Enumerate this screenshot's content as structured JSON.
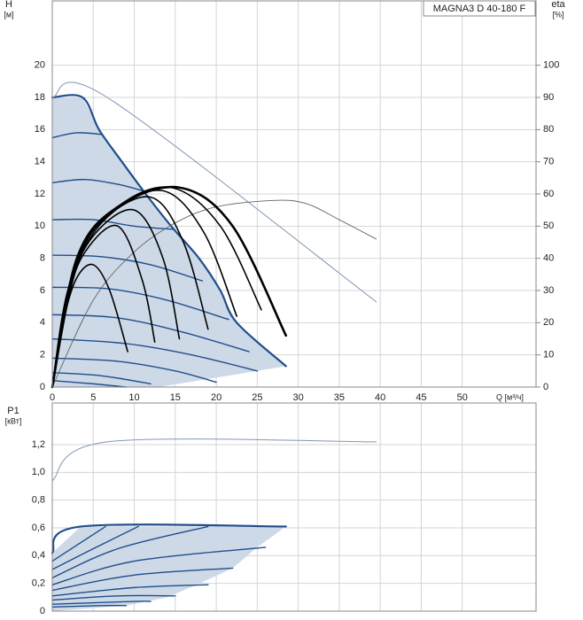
{
  "chart_data": [
    {
      "type": "line",
      "title": "MAGNA3 D 40-180 F",
      "ylabel": [
        "H",
        "[м]"
      ],
      "y2label": [
        "eta",
        "[%]"
      ],
      "xlabel": "Q [м³/ч]",
      "xlim": [
        0,
        59
      ],
      "xticks": [
        0,
        5,
        10,
        15,
        20,
        25,
        30,
        35,
        40,
        45,
        50
      ],
      "ylim": [
        0,
        24
      ],
      "yticks": [
        0,
        2,
        4,
        6,
        8,
        10,
        12,
        14,
        16,
        18,
        20
      ],
      "y2lim": [
        0,
        120
      ],
      "y2ticks": [
        0,
        10,
        20,
        30,
        40,
        50,
        60,
        70,
        80,
        90,
        100
      ],
      "grid": true,
      "series": [
        {
          "fill": "#cdd9e7",
          "x": [
            0,
            0,
            3.7,
            5.7,
            8.5,
            11.4,
            14.5,
            17.9,
            20.5,
            22.5,
            28.5,
            13,
            0
          ],
          "values": [
            0,
            18,
            18,
            16,
            14,
            12,
            10,
            8,
            6,
            4,
            1.3,
            0,
            0
          ]
        },
        {
          "color": "#1f4e8c",
          "width": 2.2,
          "x": [
            0,
            3.7,
            5.7,
            8.5,
            11.4,
            14.5,
            17.9,
            20.5,
            22.5,
            28.5
          ],
          "values": [
            18,
            18,
            16,
            14,
            12,
            10,
            8,
            6,
            4,
            1.3
          ]
        },
        {
          "color": "#1f4e8c",
          "width": 1.4,
          "x": [
            0,
            3,
            6.1
          ],
          "values": [
            15.5,
            15.8,
            15.7
          ]
        },
        {
          "color": "#1f4e8c",
          "width": 1.4,
          "x": [
            0,
            4,
            8,
            11
          ],
          "values": [
            12.7,
            12.9,
            12.6,
            12.2
          ]
        },
        {
          "color": "#1f4e8c",
          "width": 1.4,
          "x": [
            0,
            5,
            10,
            14.8
          ],
          "values": [
            10.4,
            10.4,
            10.0,
            9.8
          ]
        },
        {
          "color": "#1f4e8c",
          "width": 1.4,
          "x": [
            0,
            6,
            12,
            18.3
          ],
          "values": [
            8.2,
            8.1,
            7.6,
            6.6
          ]
        },
        {
          "color": "#1f4e8c",
          "width": 1.4,
          "x": [
            0,
            7,
            14,
            21.5
          ],
          "values": [
            6.2,
            6.1,
            5.4,
            4.2
          ]
        },
        {
          "color": "#1f4e8c",
          "width": 1.4,
          "x": [
            0,
            8,
            16,
            24
          ],
          "values": [
            4.5,
            4.3,
            3.4,
            2.2
          ]
        },
        {
          "color": "#1f4e8c",
          "width": 1.4,
          "x": [
            0,
            9,
            17,
            25
          ],
          "values": [
            3.0,
            2.7,
            2.0,
            1.0
          ]
        },
        {
          "color": "#1f4e8c",
          "width": 1.4,
          "x": [
            0,
            8,
            15,
            20
          ],
          "values": [
            1.8,
            1.6,
            1.0,
            0.3
          ]
        },
        {
          "color": "#1f4e8c",
          "width": 1.4,
          "x": [
            0,
            6,
            12
          ],
          "values": [
            0.9,
            0.7,
            0.2
          ]
        },
        {
          "color": "#1f4e8c",
          "width": 1.4,
          "x": [
            0,
            5,
            9
          ],
          "values": [
            0.4,
            0.2,
            0
          ]
        },
        {
          "color": "#8295b5",
          "width": 1,
          "x": [
            0,
            6.7,
            39.5
          ],
          "values": [
            18,
            18,
            5.3
          ]
        },
        {
          "color": "#666666",
          "width": 0.9,
          "axis": "y2",
          "x": [
            0,
            5,
            10,
            15,
            20,
            27,
            31,
            35,
            39.5
          ],
          "values": [
            0,
            27,
            42,
            51,
            56,
            58,
            57,
            52,
            46
          ]
        },
        {
          "color": "#000000",
          "width": 1.6,
          "axis": "y2",
          "x": [
            0,
            1.5,
            3,
            5,
            7,
            9.2
          ],
          "values": [
            0,
            22,
            34,
            38,
            30,
            11
          ]
        },
        {
          "color": "#000000",
          "width": 1.6,
          "axis": "y2",
          "x": [
            0,
            2,
            4,
            8,
            11,
            12.5
          ],
          "values": [
            0,
            28,
            42,
            50,
            33,
            14
          ]
        },
        {
          "color": "#000000",
          "width": 1.6,
          "axis": "y2",
          "x": [
            0,
            2,
            5,
            10,
            13.5,
            15.5
          ],
          "values": [
            0,
            30,
            47,
            55,
            40,
            15
          ]
        },
        {
          "color": "#000000",
          "width": 1.6,
          "axis": "y2",
          "x": [
            0,
            2,
            6,
            12,
            16,
            19
          ],
          "values": [
            0,
            31,
            51,
            59,
            45,
            18
          ]
        },
        {
          "color": "#000000",
          "width": 1.6,
          "axis": "y2",
          "x": [
            0,
            3,
            7,
            13.5,
            18.5,
            22.5
          ],
          "values": [
            0,
            38,
            54,
            61,
            48,
            22
          ]
        },
        {
          "color": "#000000",
          "width": 1.6,
          "axis": "y2",
          "x": [
            0,
            3,
            8,
            14.5,
            20.5,
            25.5
          ],
          "values": [
            0,
            39,
            56,
            62,
            50,
            24
          ]
        },
        {
          "color": "#000000",
          "width": 2.6,
          "axis": "y2",
          "x": [
            0,
            3,
            8,
            15.5,
            22,
            28.5
          ],
          "values": [
            0,
            40,
            56,
            62,
            50,
            16
          ]
        }
      ]
    },
    {
      "type": "line",
      "ylabel": [
        "P1",
        "[кВт]"
      ],
      "xlim": [
        0,
        59
      ],
      "ylim": [
        0,
        1.5
      ],
      "yticks": [
        0,
        {
          "value": 0.2,
          "label": "0,2"
        },
        {
          "value": 0.4,
          "label": "0,4"
        },
        {
          "value": 0.6,
          "label": "0,6"
        },
        {
          "value": 0.8,
          "label": "0,8"
        },
        {
          "value": 1.0,
          "label": "1,0"
        },
        {
          "value": 1.2,
          "label": "1,2"
        }
      ],
      "grid": true,
      "series": [
        {
          "fill": "#cdd9e7",
          "x": [
            0,
            0,
            3.5,
            28.5,
            25,
            22,
            18,
            14,
            9,
            0
          ],
          "values": [
            0,
            0.42,
            0.61,
            0.61,
            0.46,
            0.31,
            0.2,
            0.1,
            0.04,
            0
          ]
        },
        {
          "color": "#1f4e8c",
          "width": 2.2,
          "x": [
            0,
            3.5,
            28.5
          ],
          "values": [
            0.42,
            0.61,
            0.61
          ]
        },
        {
          "color": "#1f4e8c",
          "width": 1.4,
          "x": [
            0,
            6.5
          ],
          "values": [
            0.36,
            0.61
          ]
        },
        {
          "color": "#1f4e8c",
          "width": 1.4,
          "x": [
            0,
            5,
            10.5
          ],
          "values": [
            0.3,
            0.45,
            0.61
          ]
        },
        {
          "color": "#1f4e8c",
          "width": 1.4,
          "x": [
            0,
            8,
            19
          ],
          "values": [
            0.24,
            0.45,
            0.61
          ]
        },
        {
          "color": "#1f4e8c",
          "width": 1.4,
          "x": [
            0,
            10,
            26
          ],
          "values": [
            0.19,
            0.36,
            0.46
          ]
        },
        {
          "color": "#1f4e8c",
          "width": 1.4,
          "x": [
            0,
            10,
            22
          ],
          "values": [
            0.15,
            0.26,
            0.31
          ]
        },
        {
          "color": "#1f4e8c",
          "width": 1.4,
          "x": [
            0,
            10,
            19
          ],
          "values": [
            0.11,
            0.17,
            0.19
          ]
        },
        {
          "color": "#1f4e8c",
          "width": 1.4,
          "x": [
            0,
            8,
            15
          ],
          "values": [
            0.08,
            0.11,
            0.11
          ]
        },
        {
          "color": "#1f4e8c",
          "width": 1.4,
          "x": [
            0,
            10,
            12
          ],
          "values": [
            0.05,
            0.07,
            0.07
          ]
        },
        {
          "color": "#1f4e8c",
          "width": 1.4,
          "x": [
            0,
            6,
            9
          ],
          "values": [
            0.03,
            0.04,
            0.04
          ]
        },
        {
          "color": "#8295b5",
          "width": 1,
          "x": [
            0,
            6.7,
            39.5
          ],
          "values": [
            0.94,
            1.22,
            1.22
          ]
        }
      ]
    }
  ]
}
